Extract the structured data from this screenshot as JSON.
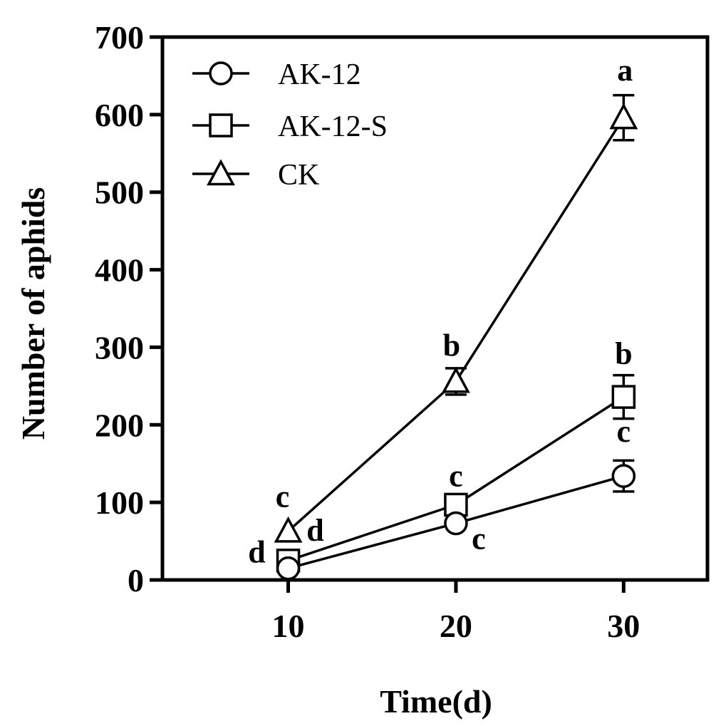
{
  "chart_data": {
    "type": "line",
    "xlabel": "Time(d)",
    "ylabel": "Number of aphids",
    "x": [
      10,
      20,
      30
    ],
    "x_ticks": [
      "10",
      "20",
      "30"
    ],
    "xlim": [
      2.5,
      35
    ],
    "ylim": [
      0,
      700
    ],
    "y_ticks": [
      "0",
      "100",
      "200",
      "300",
      "400",
      "500",
      "600",
      "700"
    ],
    "grid": false,
    "legend_position": "top-left",
    "series": [
      {
        "name": "AK-12",
        "marker": "circle",
        "values": [
          15,
          73,
          134
        ],
        "errors": [
          0,
          0,
          20
        ],
        "labels": [
          "d",
          "c",
          "c"
        ]
      },
      {
        "name": "AK-12-S",
        "marker": "square",
        "values": [
          25,
          97,
          236
        ],
        "errors": [
          0,
          0,
          28
        ],
        "labels": [
          "d",
          "c",
          "b"
        ]
      },
      {
        "name": "CK",
        "marker": "triangle",
        "values": [
          63,
          256,
          596
        ],
        "errors": [
          0,
          17,
          29
        ],
        "labels": [
          "c",
          "b",
          "a"
        ]
      }
    ]
  }
}
